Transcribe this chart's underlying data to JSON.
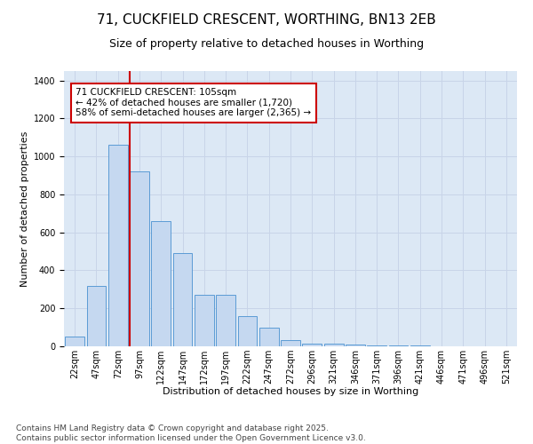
{
  "title": "71, CUCKFIELD CRESCENT, WORTHING, BN13 2EB",
  "subtitle": "Size of property relative to detached houses in Worthing",
  "xlabel": "Distribution of detached houses by size in Worthing",
  "ylabel": "Number of detached properties",
  "categories": [
    "22sqm",
    "47sqm",
    "72sqm",
    "97sqm",
    "122sqm",
    "147sqm",
    "172sqm",
    "197sqm",
    "222sqm",
    "247sqm",
    "272sqm",
    "296sqm",
    "321sqm",
    "346sqm",
    "371sqm",
    "396sqm",
    "421sqm",
    "446sqm",
    "471sqm",
    "496sqm",
    "521sqm"
  ],
  "values": [
    50,
    320,
    1060,
    920,
    660,
    490,
    270,
    270,
    160,
    100,
    35,
    15,
    15,
    10,
    5,
    3,
    5,
    2,
    0,
    0,
    0
  ],
  "bar_color": "#c5d8f0",
  "bar_edge_color": "#5b9bd5",
  "highlight_line_index": 3,
  "highlight_line_color": "#cc0000",
  "annotation_line1": "71 CUCKFIELD CRESCENT: 105sqm",
  "annotation_line2": "← 42% of detached houses are smaller (1,720)",
  "annotation_line3": "58% of semi-detached houses are larger (2,365) →",
  "ylim": [
    0,
    1450
  ],
  "yticks": [
    0,
    200,
    400,
    600,
    800,
    1000,
    1200,
    1400
  ],
  "grid_color": "#c8d4e8",
  "background_color": "#dce8f5",
  "footer": "Contains HM Land Registry data © Crown copyright and database right 2025.\nContains public sector information licensed under the Open Government Licence v3.0.",
  "title_fontsize": 11,
  "subtitle_fontsize": 9,
  "xlabel_fontsize": 8,
  "ylabel_fontsize": 8,
  "tick_fontsize": 7,
  "annotation_fontsize": 7.5,
  "footer_fontsize": 6.5
}
